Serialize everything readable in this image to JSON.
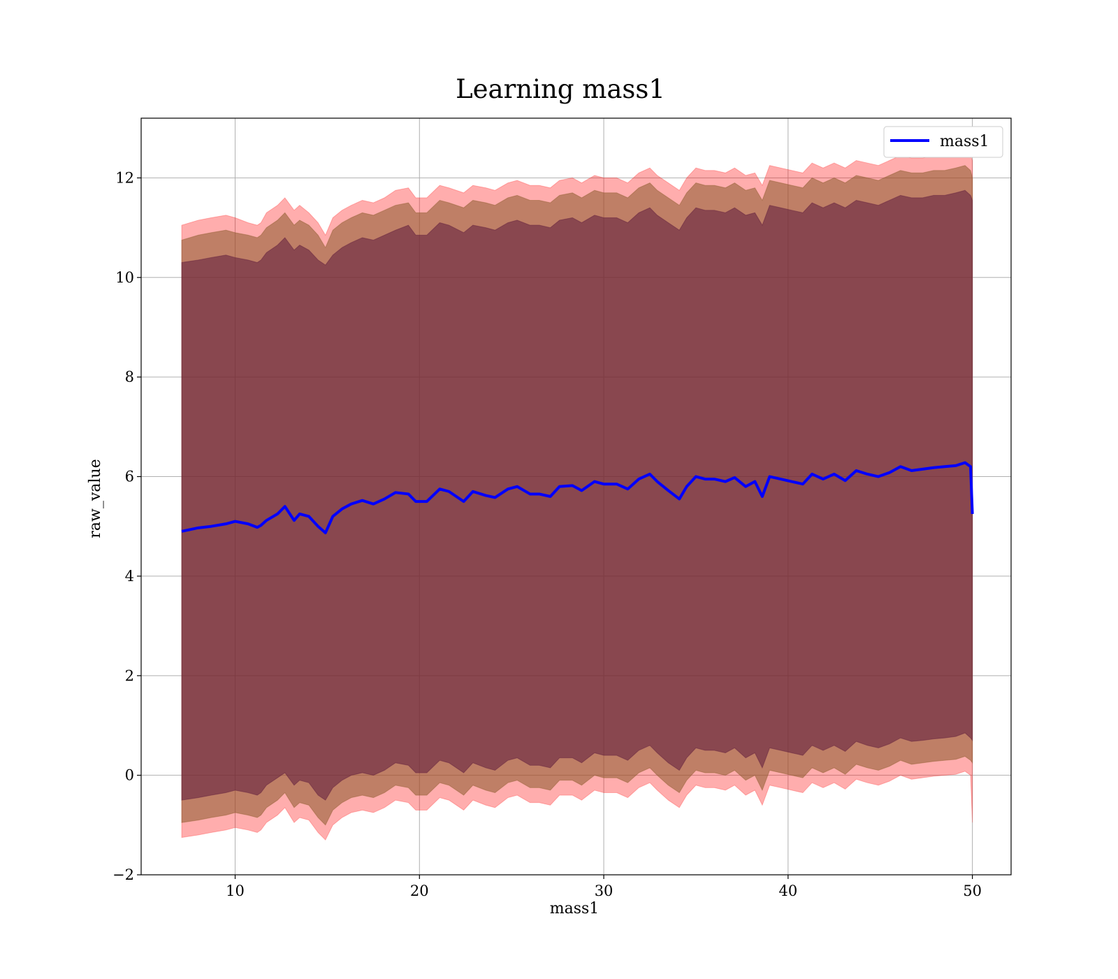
{
  "chart_data": {
    "type": "line",
    "title": "Learning mass1",
    "xlabel": "mass1",
    "ylabel": "raw_value",
    "xlim": [
      4.9,
      52.1
    ],
    "ylim": [
      -2.0,
      13.2
    ],
    "xticks": [
      10,
      20,
      30,
      40,
      50
    ],
    "yticks": [
      -2,
      0,
      2,
      4,
      6,
      8,
      10,
      12
    ],
    "xtick_labels": [
      "10",
      "20",
      "30",
      "40",
      "50"
    ],
    "ytick_labels": [
      "−2",
      "0",
      "2",
      "4",
      "6",
      "8",
      "10",
      "12"
    ],
    "grid": true,
    "legend": {
      "location": "upper right",
      "entries": [
        "mass1"
      ]
    },
    "colors": {
      "line": "#0000ff",
      "band_outer": "#ff0000",
      "band_middle": "#8b5a2b",
      "band_inner": "#5c1a3c",
      "grid": "#b0b0b0"
    },
    "series": [
      {
        "name": "mass1",
        "x": [
          7.1,
          8.0,
          8.7,
          9.5,
          10.0,
          10.7,
          11.2,
          11.4,
          11.7,
          12.3,
          12.7,
          13.2,
          13.5,
          14.0,
          14.5,
          14.9,
          15.3,
          15.8,
          16.3,
          16.9,
          17.5,
          18.1,
          18.7,
          19.4,
          19.8,
          20.4,
          21.1,
          21.6,
          22.4,
          22.9,
          23.6,
          24.1,
          24.8,
          25.3,
          26.0,
          26.5,
          27.1,
          27.6,
          28.3,
          28.8,
          29.5,
          30.0,
          30.7,
          31.3,
          31.9,
          32.5,
          32.9,
          33.5,
          34.1,
          34.5,
          35.0,
          35.5,
          36.0,
          36.6,
          37.1,
          37.7,
          38.2,
          38.6,
          39.0,
          39.6,
          40.2,
          40.8,
          41.3,
          41.9,
          42.5,
          43.1,
          43.7,
          44.3,
          44.9,
          45.5,
          46.1,
          46.7,
          47.3,
          47.9,
          48.5,
          49.1,
          49.6,
          49.9,
          50.0
        ],
        "y": [
          4.9,
          4.97,
          5.0,
          5.05,
          5.1,
          5.05,
          4.98,
          5.02,
          5.12,
          5.25,
          5.4,
          5.12,
          5.25,
          5.2,
          5.0,
          4.87,
          5.2,
          5.35,
          5.45,
          5.52,
          5.45,
          5.55,
          5.68,
          5.65,
          5.5,
          5.5,
          5.75,
          5.7,
          5.5,
          5.7,
          5.62,
          5.58,
          5.75,
          5.8,
          5.65,
          5.65,
          5.6,
          5.8,
          5.82,
          5.72,
          5.9,
          5.85,
          5.85,
          5.75,
          5.95,
          6.05,
          5.9,
          5.72,
          5.55,
          5.8,
          6.0,
          5.95,
          5.95,
          5.9,
          5.98,
          5.8,
          5.9,
          5.6,
          6.0,
          5.95,
          5.9,
          5.85,
          6.05,
          5.95,
          6.05,
          5.92,
          6.12,
          6.05,
          6.0,
          6.08,
          6.2,
          6.12,
          6.15,
          6.18,
          6.2,
          6.22,
          6.28,
          6.2,
          5.25
        ],
        "band_outer_upper": [
          11.05,
          11.15,
          11.2,
          11.25,
          11.2,
          11.1,
          11.05,
          11.1,
          11.3,
          11.45,
          11.6,
          11.35,
          11.45,
          11.3,
          11.1,
          10.85,
          11.2,
          11.35,
          11.45,
          11.55,
          11.5,
          11.6,
          11.75,
          11.8,
          11.6,
          11.6,
          11.85,
          11.8,
          11.7,
          11.85,
          11.8,
          11.75,
          11.9,
          11.95,
          11.85,
          11.85,
          11.8,
          11.95,
          12.0,
          11.9,
          12.05,
          12.0,
          12.0,
          11.9,
          12.1,
          12.2,
          12.05,
          11.9,
          11.75,
          12.0,
          12.2,
          12.15,
          12.15,
          12.1,
          12.2,
          12.05,
          12.1,
          11.85,
          12.25,
          12.2,
          12.15,
          12.1,
          12.3,
          12.2,
          12.3,
          12.2,
          12.35,
          12.3,
          12.25,
          12.35,
          12.45,
          12.4,
          12.4,
          12.45,
          12.45,
          12.5,
          12.55,
          12.45,
          12.35
        ],
        "band_outer_lower": [
          -1.25,
          -1.2,
          -1.15,
          -1.1,
          -1.05,
          -1.1,
          -1.15,
          -1.1,
          -0.95,
          -0.8,
          -0.65,
          -0.95,
          -0.85,
          -0.9,
          -1.15,
          -1.3,
          -1.0,
          -0.85,
          -0.75,
          -0.7,
          -0.75,
          -0.65,
          -0.5,
          -0.55,
          -0.7,
          -0.7,
          -0.45,
          -0.5,
          -0.7,
          -0.5,
          -0.6,
          -0.65,
          -0.45,
          -0.4,
          -0.55,
          -0.55,
          -0.6,
          -0.4,
          -0.4,
          -0.5,
          -0.3,
          -0.35,
          -0.35,
          -0.45,
          -0.25,
          -0.15,
          -0.3,
          -0.5,
          -0.65,
          -0.4,
          -0.2,
          -0.25,
          -0.25,
          -0.3,
          -0.2,
          -0.4,
          -0.3,
          -0.6,
          -0.2,
          -0.25,
          -0.3,
          -0.35,
          -0.15,
          -0.25,
          -0.15,
          -0.28,
          -0.08,
          -0.15,
          -0.2,
          -0.12,
          0.0,
          -0.08,
          -0.05,
          -0.02,
          0.0,
          0.02,
          0.08,
          0.0,
          -0.95
        ],
        "band_middle_upper": [
          10.75,
          10.85,
          10.9,
          10.95,
          10.9,
          10.85,
          10.8,
          10.85,
          11.0,
          11.15,
          11.3,
          11.05,
          11.15,
          11.05,
          10.85,
          10.6,
          10.95,
          11.1,
          11.2,
          11.3,
          11.25,
          11.35,
          11.45,
          11.5,
          11.3,
          11.3,
          11.55,
          11.5,
          11.4,
          11.55,
          11.5,
          11.45,
          11.6,
          11.65,
          11.55,
          11.55,
          11.5,
          11.65,
          11.7,
          11.6,
          11.75,
          11.7,
          11.7,
          11.6,
          11.8,
          11.9,
          11.75,
          11.6,
          11.45,
          11.7,
          11.9,
          11.85,
          11.85,
          11.8,
          11.9,
          11.75,
          11.8,
          11.55,
          11.95,
          11.9,
          11.85,
          11.8,
          12.0,
          11.9,
          12.0,
          11.9,
          12.05,
          12.0,
          11.95,
          12.05,
          12.15,
          12.1,
          12.1,
          12.15,
          12.15,
          12.2,
          12.25,
          12.15,
          12.0
        ],
        "band_middle_lower": [
          -0.95,
          -0.9,
          -0.85,
          -0.8,
          -0.75,
          -0.8,
          -0.85,
          -0.8,
          -0.65,
          -0.5,
          -0.35,
          -0.65,
          -0.55,
          -0.6,
          -0.85,
          -1.0,
          -0.7,
          -0.55,
          -0.45,
          -0.4,
          -0.45,
          -0.35,
          -0.2,
          -0.25,
          -0.4,
          -0.4,
          -0.15,
          -0.2,
          -0.4,
          -0.2,
          -0.3,
          -0.35,
          -0.15,
          -0.1,
          -0.25,
          -0.25,
          -0.3,
          -0.1,
          -0.1,
          -0.2,
          0.0,
          -0.05,
          -0.05,
          -0.15,
          0.05,
          0.15,
          0.0,
          -0.2,
          -0.35,
          -0.1,
          0.1,
          0.05,
          0.05,
          0.0,
          0.1,
          -0.1,
          0.0,
          -0.3,
          0.1,
          0.05,
          0.0,
          -0.05,
          0.15,
          0.05,
          0.15,
          0.02,
          0.22,
          0.15,
          0.1,
          0.18,
          0.3,
          0.22,
          0.25,
          0.28,
          0.3,
          0.32,
          0.38,
          0.3,
          0.25
        ],
        "band_inner_upper": [
          10.3,
          10.35,
          10.4,
          10.45,
          10.4,
          10.35,
          10.3,
          10.35,
          10.5,
          10.65,
          10.8,
          10.55,
          10.65,
          10.55,
          10.35,
          10.25,
          10.45,
          10.6,
          10.7,
          10.8,
          10.75,
          10.85,
          10.95,
          11.05,
          10.85,
          10.85,
          11.1,
          11.05,
          10.9,
          11.05,
          11.0,
          10.95,
          11.1,
          11.15,
          11.05,
          11.05,
          11.0,
          11.15,
          11.2,
          11.1,
          11.25,
          11.2,
          11.2,
          11.1,
          11.3,
          11.4,
          11.25,
          11.1,
          10.95,
          11.2,
          11.4,
          11.35,
          11.35,
          11.3,
          11.4,
          11.25,
          11.3,
          11.05,
          11.45,
          11.4,
          11.35,
          11.3,
          11.5,
          11.4,
          11.5,
          11.4,
          11.55,
          11.5,
          11.45,
          11.55,
          11.65,
          11.6,
          11.6,
          11.65,
          11.65,
          11.7,
          11.75,
          11.65,
          11.55
        ],
        "band_inner_lower": [
          -0.5,
          -0.45,
          -0.4,
          -0.35,
          -0.3,
          -0.35,
          -0.4,
          -0.35,
          -0.2,
          -0.05,
          0.05,
          -0.2,
          -0.1,
          -0.15,
          -0.4,
          -0.5,
          -0.25,
          -0.1,
          0.0,
          0.05,
          0.0,
          0.1,
          0.25,
          0.2,
          0.05,
          0.05,
          0.3,
          0.25,
          0.05,
          0.25,
          0.15,
          0.1,
          0.3,
          0.35,
          0.2,
          0.2,
          0.15,
          0.35,
          0.35,
          0.25,
          0.45,
          0.4,
          0.4,
          0.3,
          0.5,
          0.6,
          0.45,
          0.25,
          0.1,
          0.35,
          0.55,
          0.5,
          0.5,
          0.45,
          0.55,
          0.35,
          0.45,
          0.15,
          0.55,
          0.5,
          0.45,
          0.4,
          0.6,
          0.5,
          0.6,
          0.48,
          0.68,
          0.6,
          0.55,
          0.63,
          0.75,
          0.68,
          0.7,
          0.73,
          0.75,
          0.78,
          0.85,
          0.75,
          0.7
        ]
      }
    ]
  }
}
